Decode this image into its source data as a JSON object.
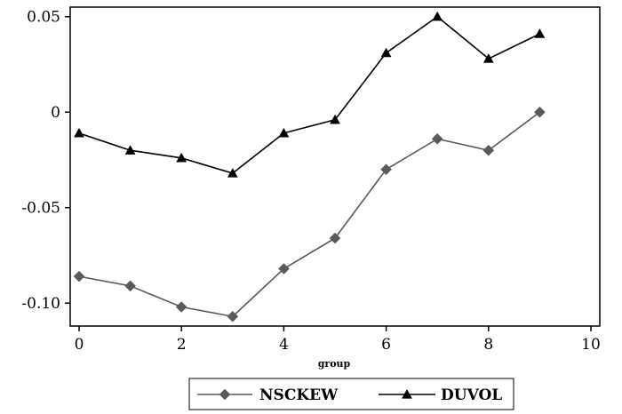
{
  "chart_data": {
    "type": "line",
    "xlabel": "group",
    "ylabel": "",
    "title": "",
    "xlim": [
      0,
      10
    ],
    "ylim": [
      -0.112,
      0.055
    ],
    "x_ticks": [
      0,
      2,
      4,
      6,
      8,
      10
    ],
    "x_tick_labels": [
      "0",
      "2",
      "4",
      "6",
      "8",
      "10"
    ],
    "y_ticks": [
      0.05,
      0,
      -0.05,
      -0.1
    ],
    "y_tick_labels": [
      "0.05",
      "0",
      "-0.05",
      "-0.10"
    ],
    "x": [
      0,
      1,
      2,
      3,
      4,
      5,
      6,
      7,
      8,
      9
    ],
    "series": [
      {
        "name": "NSCKEW",
        "marker": "diamond",
        "color": "#5a5a5a",
        "values": [
          -0.086,
          -0.091,
          -0.102,
          -0.107,
          -0.082,
          -0.066,
          -0.03,
          -0.014,
          -0.02,
          0.0
        ]
      },
      {
        "name": "DUVOL",
        "marker": "triangle",
        "color": "#000000",
        "values": [
          -0.011,
          -0.02,
          -0.024,
          -0.032,
          -0.011,
          -0.004,
          0.031,
          0.05,
          0.028,
          0.041
        ]
      }
    ],
    "grid": false,
    "legend_position": "bottom"
  }
}
